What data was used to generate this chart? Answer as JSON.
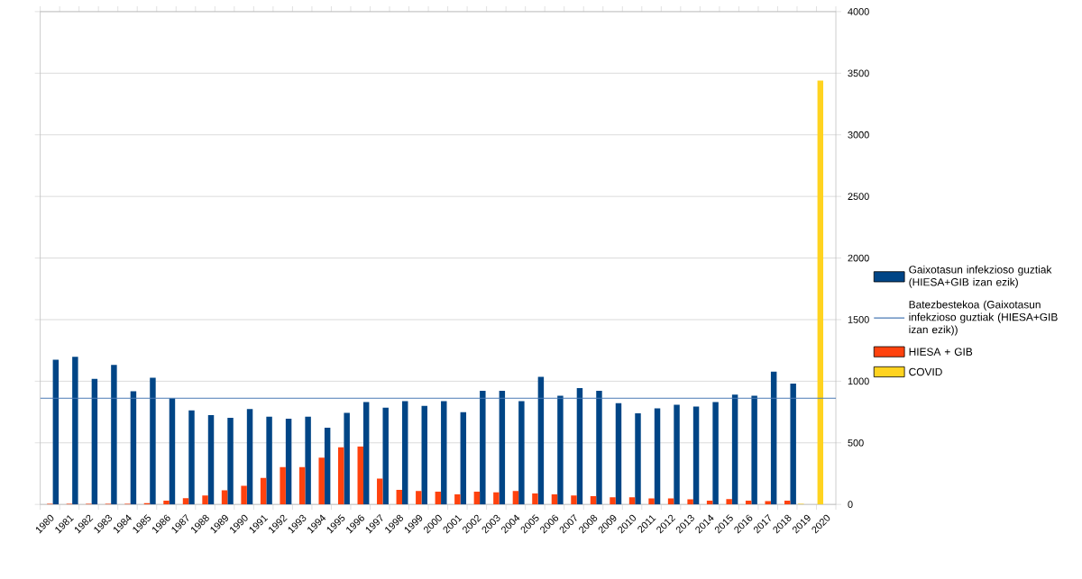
{
  "chart_data": {
    "type": "bar",
    "categories": [
      "1980",
      "1981",
      "1982",
      "1983",
      "1984",
      "1985",
      "1986",
      "1987",
      "1988",
      "1989",
      "1990",
      "1991",
      "1992",
      "1993",
      "1994",
      "1995",
      "1996",
      "1997",
      "1998",
      "1999",
      "2000",
      "2001",
      "2002",
      "2003",
      "2004",
      "2005",
      "2006",
      "2007",
      "2008",
      "2009",
      "2010",
      "2011",
      "2012",
      "2013",
      "2014",
      "2015",
      "2016",
      "2017",
      "2018",
      "2019",
      "2020"
    ],
    "series": [
      {
        "name": "Gaixotasun infekzioso guztiak (HIESA+GIB izan ezik)",
        "color": "#004586",
        "values": [
          1174,
          1198,
          1019,
          1133,
          918,
          1029,
          862,
          763,
          725,
          703,
          775,
          713,
          696,
          713,
          623,
          744,
          831,
          785,
          838,
          800,
          838,
          749,
          923,
          923,
          838,
          1036,
          882,
          944,
          923,
          821,
          739,
          780,
          809,
          795,
          831,
          891,
          882,
          1077,
          981,
          null,
          null
        ]
      },
      {
        "name": "HIESA + GIB",
        "color": "#ff420e",
        "values": [
          5,
          5,
          5,
          5,
          5,
          10,
          31,
          51,
          72,
          114,
          152,
          215,
          302,
          302,
          379,
          464,
          471,
          210,
          118,
          109,
          104,
          82,
          104,
          99,
          109,
          89,
          82,
          72,
          68,
          58,
          58,
          48,
          48,
          41,
          31,
          43,
          31,
          27,
          31,
          null,
          null
        ]
      },
      {
        "name": "COVID",
        "color": "#ffd320",
        "values": [
          null,
          null,
          null,
          null,
          null,
          null,
          null,
          null,
          null,
          null,
          null,
          null,
          null,
          null,
          null,
          null,
          null,
          null,
          null,
          null,
          null,
          null,
          null,
          null,
          null,
          null,
          null,
          null,
          null,
          null,
          null,
          null,
          null,
          null,
          null,
          null,
          null,
          null,
          null,
          5,
          3440
        ]
      }
    ],
    "ref_lines": [
      {
        "axis": "y",
        "value": 862,
        "label": "Batezbestekoa (Gaixotasun infekzioso guztiak (HIESA+GIB izan ezik))",
        "color": "#4a7ab5"
      }
    ],
    "ylim": [
      0,
      4000
    ],
    "yticks": [
      0,
      500,
      1000,
      1500,
      2000,
      2500,
      3000,
      3500,
      4000
    ],
    "grid": "y",
    "legend": "right"
  }
}
